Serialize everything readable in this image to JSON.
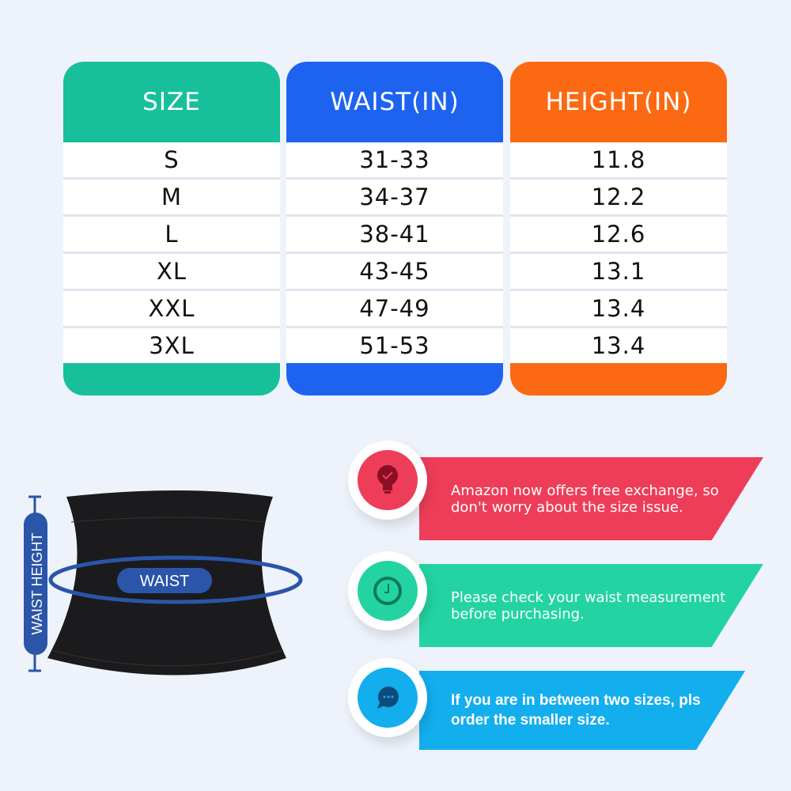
{
  "colors": {
    "size": "#17c09b",
    "waist": "#1e63f0",
    "height": "#fb6a12",
    "accent_blue": "#2a55a8"
  },
  "table": {
    "headers": [
      "SIZE",
      "WAIST(IN)",
      "HEIGHT(IN)"
    ],
    "rows": [
      [
        "S",
        "31-33",
        "11.8"
      ],
      [
        "M",
        "34-37",
        "12.2"
      ],
      [
        "L",
        "38-41",
        "12.6"
      ],
      [
        "XL",
        "43-45",
        "13.1"
      ],
      [
        "XXL",
        "47-49",
        "13.4"
      ],
      [
        "3XL",
        "51-53",
        "13.4"
      ]
    ]
  },
  "diagram": {
    "height_label": "WAIST HEIGHT",
    "waist_label": "WAIST"
  },
  "tips": [
    {
      "icon": "lightbulb-check-icon",
      "color": "#ee3d59",
      "text": "Amazon now offers free exchange, so don't worry about the size issue."
    },
    {
      "icon": "clock-icon",
      "color": "#23d4a2",
      "text": "Please check your waist measurement before purchasing."
    },
    {
      "icon": "chat-bubble-icon",
      "color": "#13aeee",
      "text": "If you are in between two sizes, pls order the smaller size."
    }
  ]
}
